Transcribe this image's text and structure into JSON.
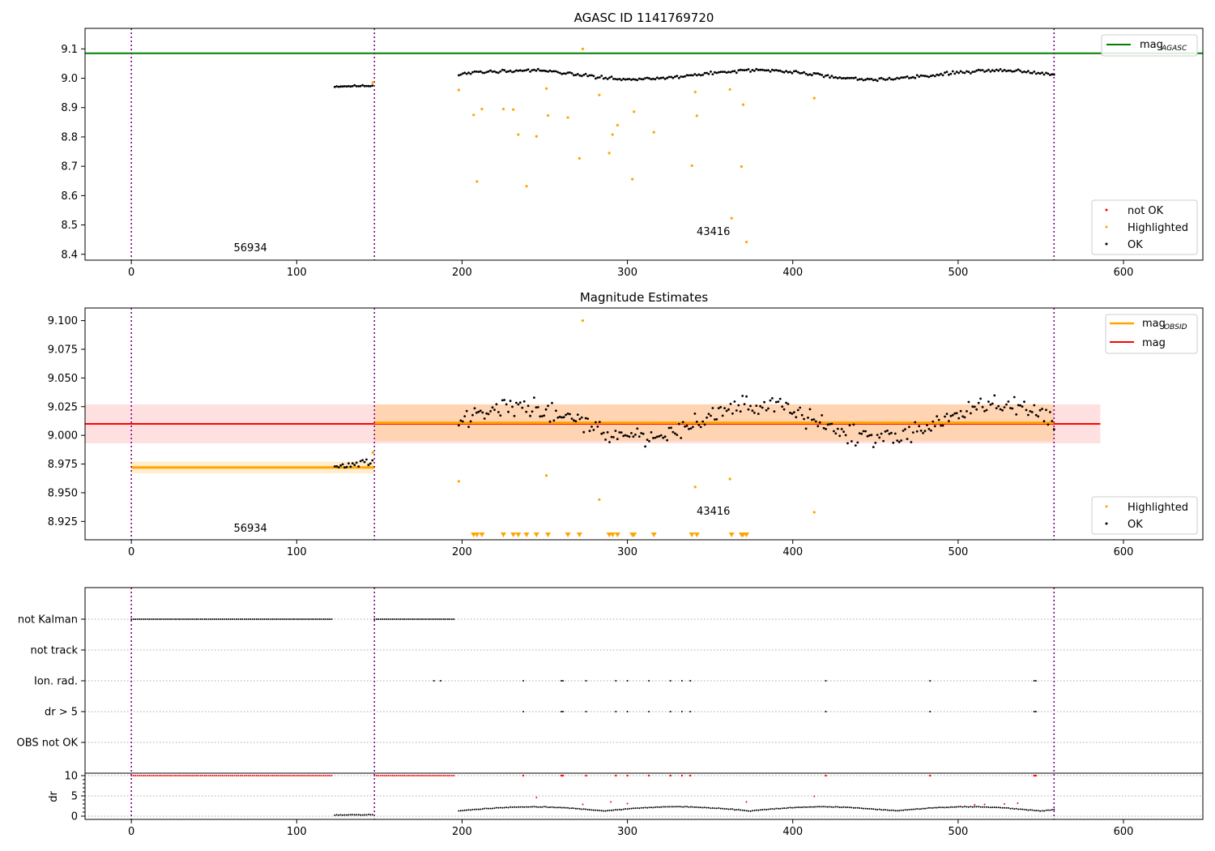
{
  "chart_data": [
    {
      "type": "scatter",
      "title": "AGASC ID 1141769720",
      "xlim": [
        -28,
        648
      ],
      "ylim": [
        8.38,
        9.17
      ],
      "xticks": [
        0,
        100,
        200,
        300,
        400,
        500,
        600
      ],
      "yticks": [
        8.4,
        8.5,
        8.6,
        8.7,
        8.8,
        8.9,
        9.0,
        9.1
      ],
      "ytick_labels": [
        "8.4",
        "8.5",
        "8.6",
        "8.7",
        "8.8",
        "8.9",
        "9.0",
        "9.1"
      ],
      "obs_boundaries": [
        0,
        147,
        558
      ],
      "obs_labels": [
        {
          "text": "56934",
          "x": 72,
          "y": 8.41
        },
        {
          "text": "43416",
          "x": 352,
          "y": 8.465
        }
      ],
      "mag_agasc": 9.085,
      "ok_segments": [
        {
          "x0": 123,
          "x1": 146,
          "base": 8.972,
          "amp": 0.003,
          "noise": 0.004
        },
        {
          "x0": 198,
          "x1": 558,
          "base": 9.012,
          "amp": 0.015,
          "noise": 0.008
        }
      ],
      "highlighted": [
        [
          146,
          8.985
        ],
        [
          198,
          8.96
        ],
        [
          207,
          8.875
        ],
        [
          209,
          8.648
        ],
        [
          212,
          8.895
        ],
        [
          225,
          8.895
        ],
        [
          231,
          8.893
        ],
        [
          234,
          8.808
        ],
        [
          239,
          8.632
        ],
        [
          245,
          8.802
        ],
        [
          251,
          8.965
        ],
        [
          252,
          8.873
        ],
        [
          264,
          8.866
        ],
        [
          271,
          8.727
        ],
        [
          273,
          9.1
        ],
        [
          283,
          8.943
        ],
        [
          289,
          8.745
        ],
        [
          291,
          8.808
        ],
        [
          294,
          8.84
        ],
        [
          303,
          8.656
        ],
        [
          304,
          8.886
        ],
        [
          316,
          8.816
        ],
        [
          339,
          8.702
        ],
        [
          341,
          8.953
        ],
        [
          342,
          8.872
        ],
        [
          362,
          8.962
        ],
        [
          363,
          8.523
        ],
        [
          369,
          8.699
        ],
        [
          370,
          8.91
        ],
        [
          372,
          8.442
        ],
        [
          413,
          8.932
        ]
      ],
      "legend_line": [
        {
          "label": "mag",
          "sub": "AGASC",
          "color": "#008000"
        }
      ],
      "legend_points": [
        {
          "label": "not OK",
          "color": "#ff0000"
        },
        {
          "label": "Highlighted",
          "color": "#ffa500"
        },
        {
          "label": "OK",
          "color": "#000000"
        }
      ]
    },
    {
      "type": "scatter",
      "title": "Magnitude Estimates",
      "xlim": [
        -28,
        648
      ],
      "ylim": [
        8.909,
        9.111
      ],
      "xticks": [
        0,
        100,
        200,
        300,
        400,
        500,
        600
      ],
      "yticks": [
        8.925,
        8.95,
        8.975,
        9.0,
        9.025,
        9.05,
        9.075,
        9.1
      ],
      "ytick_labels": [
        "8.925",
        "8.950",
        "8.975",
        "9.000",
        "9.025",
        "9.050",
        "9.075",
        "9.100"
      ],
      "obs_boundaries": [
        0,
        147,
        558
      ],
      "obs_labels": [
        {
          "text": "56934",
          "x": 72,
          "y": 8.916
        },
        {
          "text": "43416",
          "x": 352,
          "y": 8.931
        }
      ],
      "mag": {
        "value": 9.01,
        "band": [
          8.993,
          9.027
        ],
        "x_range": [
          -28,
          586
        ]
      },
      "mag_obsid": [
        {
          "x0": 0,
          "x1": 147,
          "value": 8.972,
          "band": [
            8.967,
            8.977
          ]
        },
        {
          "x0": 147,
          "x1": 558,
          "value": 9.011,
          "band": [
            8.995,
            9.027
          ]
        }
      ],
      "ok_segments": [
        {
          "x0": 123,
          "x1": 146,
          "base": 8.972,
          "amp": 0.006,
          "noise": 0.004
        },
        {
          "x0": 198,
          "x1": 558,
          "base": 9.012,
          "amp": 0.014,
          "noise": 0.012
        }
      ],
      "highlighted": [
        [
          146,
          8.985
        ],
        [
          198,
          8.96
        ],
        [
          251,
          8.965
        ],
        [
          273,
          9.1
        ],
        [
          283,
          8.944
        ],
        [
          341,
          8.955
        ],
        [
          362,
          8.962
        ],
        [
          413,
          8.933
        ]
      ],
      "highlighted_offscale": [
        207,
        209,
        212,
        225,
        231,
        234,
        239,
        245,
        252,
        264,
        271,
        289,
        291,
        294,
        303,
        304,
        316,
        339,
        342,
        363,
        369,
        370,
        372
      ],
      "legend_line": [
        {
          "label": "mag",
          "sub": "OBSID",
          "color": "#ffa500"
        },
        {
          "label": "mag",
          "sub": "",
          "color": "#ff0000"
        }
      ],
      "legend_points": [
        {
          "label": "Highlighted",
          "color": "#ffa500"
        },
        {
          "label": "OK",
          "color": "#000000"
        }
      ]
    },
    {
      "type": "scatter",
      "title": "",
      "xlim": [
        -28,
        648
      ],
      "xticks": [
        0,
        100,
        200,
        300,
        400,
        500,
        600
      ],
      "obs_boundaries": [
        0,
        147,
        558
      ],
      "flag_rows": [
        "not Kalman",
        "not track",
        "Ion. rad.",
        "dr > 5",
        "OBS not OK"
      ],
      "flag_ranges": {
        "not Kalman": [
          [
            0,
            122
          ],
          [
            147,
            196
          ]
        ],
        "not track": []
      },
      "event_x": [
        237,
        260,
        261,
        275,
        293,
        300,
        313,
        326,
        333,
        338,
        420,
        483,
        546,
        547
      ],
      "extra_ion_x": [
        183,
        187
      ],
      "dr": {
        "ylabel": "dr",
        "yticks": [
          0,
          5,
          10
        ],
        "ytick_labels": [
          "0",
          "5",
          "10"
        ],
        "ylim": [
          -0.8,
          10.6
        ],
        "clip": 10,
        "clipped_ranges": [
          [
            0,
            122
          ],
          [
            147,
            196
          ]
        ],
        "segments": [
          {
            "x0": 123,
            "x1": 146,
            "base": 0.3,
            "amp": 0.1
          },
          {
            "x0": 198,
            "x1": 558,
            "base": 1.3,
            "amp": 1.0
          }
        ],
        "red_points": [
          [
            245,
            4.6
          ],
          [
            273,
            2.9
          ],
          [
            290,
            3.5
          ],
          [
            300,
            3.1
          ],
          [
            372,
            3.5
          ],
          [
            413,
            4.9
          ],
          [
            510,
            2.8
          ],
          [
            516,
            2.9
          ],
          [
            528,
            3.0
          ],
          [
            536,
            3.2
          ]
        ]
      }
    }
  ]
}
